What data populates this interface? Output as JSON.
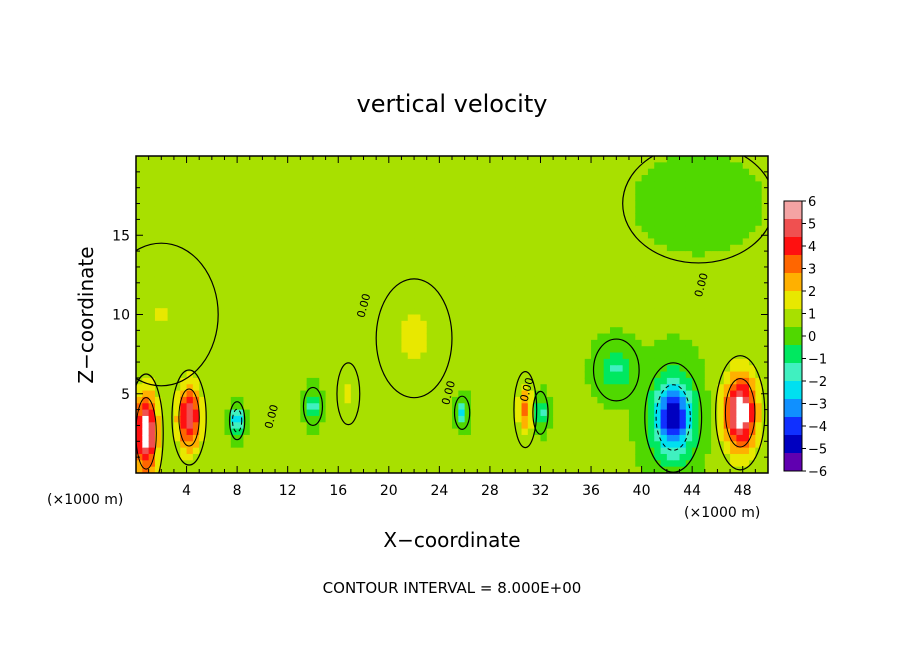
{
  "chart_data": {
    "type": "heatmap",
    "title": "vertical velocity",
    "xlabel": "X−coordinate",
    "ylabel": "Z−coordinate",
    "x_unit": "(×1000 m)",
    "x_unit_right": "(×1000 m)",
    "xlim": [
      0,
      50
    ],
    "ylim": [
      0,
      20
    ],
    "x_ticks": [
      4,
      8,
      12,
      16,
      20,
      24,
      28,
      32,
      36,
      40,
      44,
      48
    ],
    "x_tick_labels": [
      "4",
      "8",
      "12",
      "16",
      "20",
      "24",
      "28",
      "32",
      "36",
      "40",
      "44",
      "48"
    ],
    "y_ticks": [
      5,
      10,
      15
    ],
    "y_tick_labels": [
      "5",
      "10",
      "15"
    ],
    "colorbar": {
      "levels": [
        6,
        5,
        4,
        3,
        2,
        1,
        0,
        -1,
        -2,
        -3,
        -4,
        -5,
        -6
      ],
      "labels": [
        "6",
        "5",
        "4",
        "3",
        "2",
        "1",
        "0",
        "−1",
        "−2",
        "−3",
        "−4",
        "−5",
        "−6"
      ],
      "colors": [
        "#f4a3a3",
        "#f05050",
        "#ff1010",
        "#ff6600",
        "#ffb000",
        "#e8e800",
        "#a8e000",
        "#50d800",
        "#00e860",
        "#40f0c0",
        "#00e0f0",
        "#1090ff",
        "#1030ff",
        "#0000c0",
        "#6000b0"
      ]
    },
    "background_value": 0.5,
    "features": [
      {
        "x": 0.8,
        "z": 2.5,
        "sx": 0.9,
        "sz": 2.5,
        "value": 6.5
      },
      {
        "x": 4.2,
        "z": 3.5,
        "sx": 0.9,
        "sz": 2.0,
        "value": 5.5
      },
      {
        "x": 8.0,
        "z": 3.3,
        "sx": 0.4,
        "sz": 0.8,
        "value": -4.5
      },
      {
        "x": 14.0,
        "z": 4.2,
        "sx": 0.5,
        "sz": 0.8,
        "value": -3.0
      },
      {
        "x": 16.8,
        "z": 5.0,
        "sx": 0.6,
        "sz": 1.3,
        "value": 1.2
      },
      {
        "x": 22.0,
        "z": 8.5,
        "sx": 2.0,
        "sz": 2.5,
        "value": 1.2
      },
      {
        "x": 25.8,
        "z": 3.8,
        "sx": 0.4,
        "sz": 0.7,
        "value": -3.0
      },
      {
        "x": 30.8,
        "z": 4.0,
        "sx": 0.6,
        "sz": 1.6,
        "value": 3.0
      },
      {
        "x": 32.0,
        "z": 3.8,
        "sx": 0.4,
        "sz": 0.9,
        "value": -3.0
      },
      {
        "x": 38.0,
        "z": 6.5,
        "sx": 1.2,
        "sz": 1.3,
        "value": -2.0
      },
      {
        "x": 42.5,
        "z": 3.5,
        "sx": 1.5,
        "sz": 2.3,
        "value": -6.5
      },
      {
        "x": 47.8,
        "z": 3.8,
        "sx": 1.3,
        "sz": 2.4,
        "value": 6.5
      },
      {
        "x": 44.5,
        "z": 17.0,
        "sx": 4.0,
        "sz": 2.5,
        "value": -0.2
      },
      {
        "x": 2.0,
        "z": 10.0,
        "sx": 3.0,
        "sz": 3.0,
        "value": 0.9
      }
    ],
    "contour_labels": [
      {
        "x": 18.3,
        "z": 10.5,
        "text": "0.00"
      },
      {
        "x": 11.0,
        "z": 3.5,
        "text": "0.00"
      },
      {
        "x": 25.0,
        "z": 5.0,
        "text": "0.00"
      },
      {
        "x": 31.2,
        "z": 5.2,
        "text": "0.00"
      },
      {
        "x": 45.0,
        "z": 11.8,
        "text": "0.00"
      }
    ]
  },
  "footer": {
    "contour_interval": "CONTOUR INTERVAL = 8.000E+00"
  }
}
